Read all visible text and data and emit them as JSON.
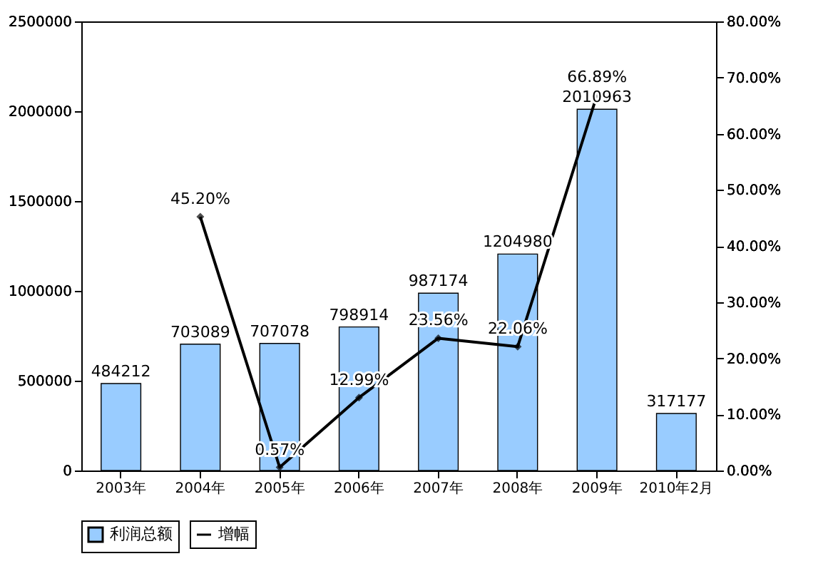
{
  "chart_data": {
    "type": "bar",
    "categories": [
      "2003年",
      "2004年",
      "2005年",
      "2006年",
      "2007年",
      "2008年",
      "2009年",
      "2010年2月"
    ],
    "series": [
      {
        "name": "利润总额",
        "color": "#99ccff",
        "values": [
          484212,
          703089,
          707078,
          798914,
          987174,
          1204980,
          2010963,
          317177
        ]
      },
      {
        "name": "增幅",
        "type": "line",
        "axis": "y2",
        "color": "#000000",
        "marker": "diamond",
        "values": [
          null,
          45.2,
          0.57,
          12.99,
          23.56,
          22.06,
          66.89,
          null
        ],
        "value_labels": [
          null,
          "45.20%",
          "0.57%",
          "12.99%",
          "23.56%",
          "22.06%",
          "66.89%",
          null
        ]
      }
    ],
    "data_labels": true,
    "ylim": [
      0,
      2500000
    ],
    "yticks": [
      0,
      500000,
      1000000,
      1500000,
      2000000,
      2500000
    ],
    "y2lim": [
      0,
      80
    ],
    "y2ticks": [
      {
        "value": 0,
        "label": "0.00%"
      },
      {
        "value": 10,
        "label": "10.00%"
      },
      {
        "value": 20,
        "label": "20.00%"
      },
      {
        "value": 30,
        "label": "30.00%"
      },
      {
        "value": 40,
        "label": "40.00%"
      },
      {
        "value": 50,
        "label": "50.00%"
      },
      {
        "value": 60,
        "label": "60.00%"
      },
      {
        "value": 70,
        "label": "70.00%"
      },
      {
        "value": 80,
        "label": "80.00%"
      }
    ],
    "grid": false,
    "legend": "bottom"
  }
}
